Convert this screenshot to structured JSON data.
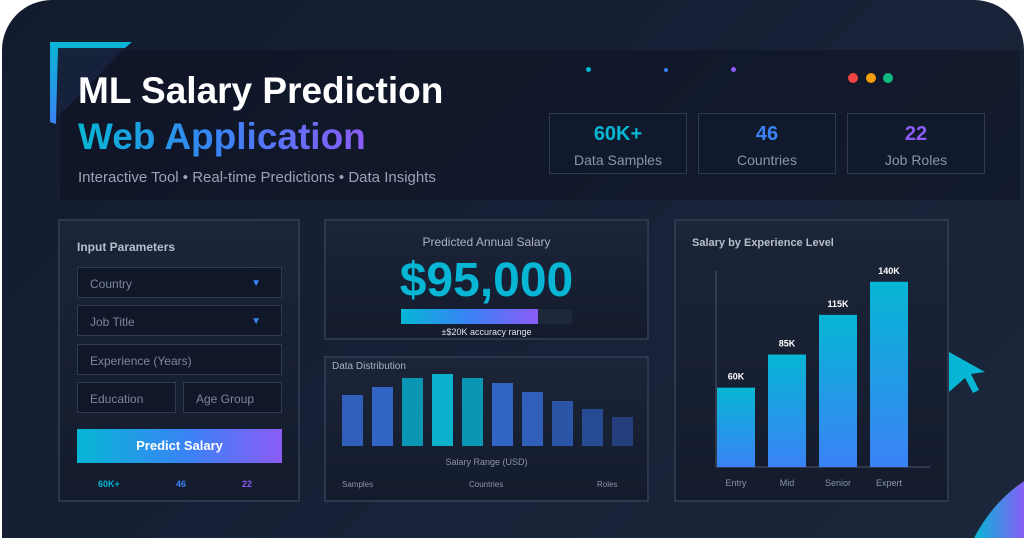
{
  "header": {
    "title_line1": "ML Salary Prediction",
    "title_line2": "Web Application",
    "tagline": "Interactive Tool • Real-time Predictions • Data Insights"
  },
  "stats": [
    {
      "value": "60K+",
      "label": "Data Samples",
      "color": "#06b6d4"
    },
    {
      "value": "46",
      "label": "Countries",
      "color": "#3b82f6"
    },
    {
      "value": "22",
      "label": "Job Roles",
      "color": "#8b5cf6"
    }
  ],
  "window_dots": [
    "#ef4444",
    "#f59e0b",
    "#10b981"
  ],
  "input_panel": {
    "title": "Input Parameters",
    "country": "Country",
    "job_title": "Job Title",
    "experience": "Experience (Years)",
    "education": "Education",
    "age_group": "Age Group",
    "predict_button": "Predict Salary",
    "mini_stats": [
      "60K+",
      "46",
      "22"
    ]
  },
  "prediction": {
    "label": "Predicted Annual Salary",
    "value": "$95,000",
    "accuracy_label": "±$20K accuracy range",
    "bar_fill_percent": 80
  },
  "chart_data": [
    {
      "type": "bar",
      "title": "Data Distribution",
      "xlabel": "Salary Range (USD)",
      "values": [
        51,
        59,
        68,
        72,
        68,
        63,
        54,
        45,
        37,
        29
      ],
      "footer_labels": [
        "Samples",
        "Countries",
        "Roles"
      ]
    },
    {
      "type": "bar",
      "title": "Salary by Experience Level",
      "categories": [
        "Entry",
        "Mid",
        "Senior",
        "Expert"
      ],
      "values": [
        60,
        85,
        115,
        140
      ],
      "data_labels": [
        "60K",
        "85K",
        "115K",
        "140K"
      ],
      "ylim": [
        0,
        160
      ]
    }
  ]
}
